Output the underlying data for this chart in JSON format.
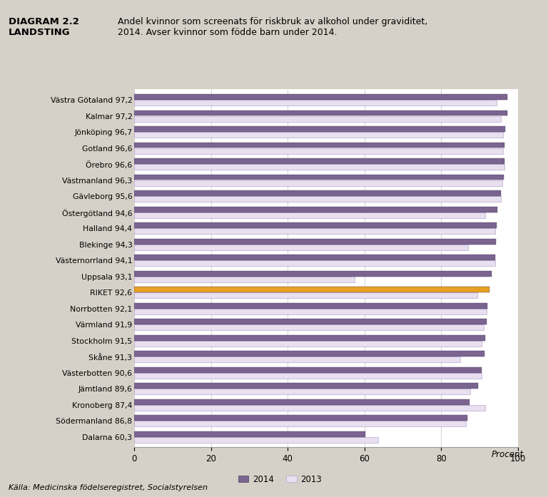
{
  "title_bold": "DIAGRAM 2.2\nLANDSTING",
  "title_text": "Andel kvinnor som screenats för riskbruk av alkohol under graviditet,\n2014. Avser kvinnor som födde barn under 2014.",
  "categories": [
    "Västra Götaland",
    "Kalmar",
    "Jönköping",
    "Gotland",
    "Örebro",
    "Västmanland",
    "Gävleborg",
    "Östergötland",
    "Halland",
    "Blekinge",
    "Västernorrland",
    "Uppsala",
    "RIKET",
    "Norrbotten",
    "Värmland",
    "Stockholm",
    "Skåne",
    "Västerbotten",
    "Jämtland",
    "Kronoberg",
    "Södermanland",
    "Dalarna"
  ],
  "values_2014": [
    97.2,
    97.2,
    96.7,
    96.6,
    96.6,
    96.3,
    95.6,
    94.6,
    94.4,
    94.3,
    94.1,
    93.1,
    92.6,
    92.1,
    91.9,
    91.5,
    91.3,
    90.6,
    89.6,
    87.4,
    86.8,
    60.3
  ],
  "values_2013": [
    94.5,
    95.5,
    96.2,
    96.2,
    96.5,
    96.0,
    95.5,
    91.5,
    94.0,
    87.0,
    94.0,
    57.5,
    89.5,
    91.8,
    91.2,
    90.5,
    85.0,
    90.5,
    87.5,
    91.5,
    86.5,
    63.5
  ],
  "color_2014_normal": "#7B6490",
  "color_riket": "#E8A020",
  "color_2013_fill": "#E8E0F0",
  "color_2013_edge": "#B8A8C8",
  "background_color": "#D6D1C8",
  "plot_bg_color": "#FFFFFF",
  "xlim": [
    0,
    100
  ],
  "xticks": [
    0,
    20,
    40,
    60,
    80,
    100
  ],
  "source": "Källa: Medicinska födelseregistret, Socialstyrelsen",
  "legend_2014": "2014",
  "legend_2013": "2013"
}
